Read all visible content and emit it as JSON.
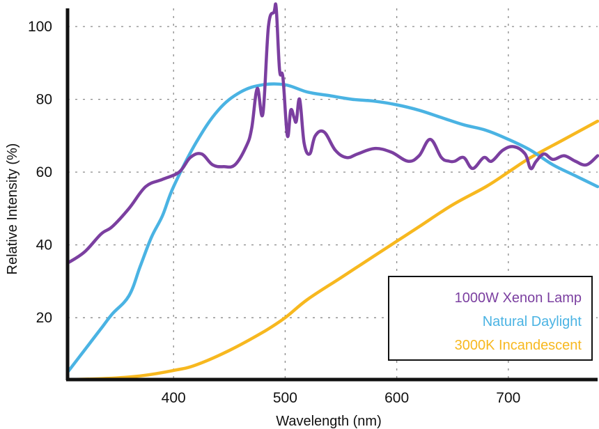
{
  "chart_data": {
    "type": "line",
    "title": "",
    "xlabel": "Wavelength (nm)",
    "ylabel": "Relative Intensity (%)",
    "xlim": [
      305,
      780
    ],
    "ylim": [
      3,
      105
    ],
    "xticks": [
      400,
      500,
      600,
      700
    ],
    "yticks": [
      20,
      40,
      60,
      80,
      100
    ],
    "x_tick_labels": [
      "400",
      "500",
      "600",
      "700"
    ],
    "y_tick_labels": [
      "20",
      "40",
      "60",
      "80",
      "100"
    ],
    "grid": true,
    "legend_position": "bottom-right",
    "series": [
      {
        "name": "1000W Xenon Lamp",
        "color": "#7b3fa0",
        "x": [
          305,
          320,
          335,
          345,
          360,
          375,
          390,
          405,
          415,
          425,
          435,
          445,
          455,
          465,
          470,
          475,
          480,
          485,
          490,
          492,
          495,
          498,
          502,
          505,
          508,
          510,
          513,
          517,
          522,
          527,
          535,
          545,
          555,
          565,
          580,
          595,
          610,
          620,
          630,
          640,
          647,
          652,
          660,
          668,
          678,
          685,
          695,
          705,
          715,
          720,
          725,
          732,
          740,
          750,
          760,
          770,
          780
        ],
        "y": [
          35,
          38,
          43,
          45,
          50,
          56,
          58,
          60,
          64,
          65,
          62,
          61.5,
          62,
          67,
          72,
          83,
          76,
          100,
          104,
          105,
          88,
          86,
          70,
          77,
          75,
          74,
          80,
          68,
          65,
          70,
          71,
          66,
          64,
          65,
          66.5,
          65.5,
          63,
          64.5,
          69,
          64,
          63,
          63,
          64,
          61,
          64,
          63,
          66,
          67,
          65,
          61,
          63,
          65,
          63.5,
          64.5,
          63,
          62,
          64.5
        ]
      },
      {
        "name": "Natural Daylight",
        "color": "#4ab3e3",
        "x": [
          305,
          320,
          335,
          345,
          360,
          370,
          380,
          390,
          400,
          420,
          440,
          460,
          480,
          500,
          520,
          540,
          560,
          580,
          600,
          620,
          640,
          660,
          680,
          700,
          720,
          740,
          760,
          780
        ],
        "y": [
          5,
          11,
          17,
          21,
          26,
          34,
          42,
          48,
          56,
          68,
          77,
          82,
          84,
          84,
          82,
          81,
          80,
          79.5,
          78.5,
          77,
          75,
          73,
          71.5,
          69,
          66,
          62,
          59,
          56
        ]
      },
      {
        "name": "3000K Incandescent",
        "color": "#f7b81f",
        "x": [
          305,
          340,
          370,
          400,
          420,
          450,
          480,
          500,
          520,
          550,
          580,
          600,
          620,
          650,
          680,
          700,
          720,
          750,
          780
        ],
        "y": [
          3,
          3.3,
          4,
          5.5,
          7,
          11,
          16,
          20,
          25,
          31,
          37,
          41,
          45,
          51,
          56,
          60,
          64,
          69,
          74
        ]
      }
    ]
  }
}
